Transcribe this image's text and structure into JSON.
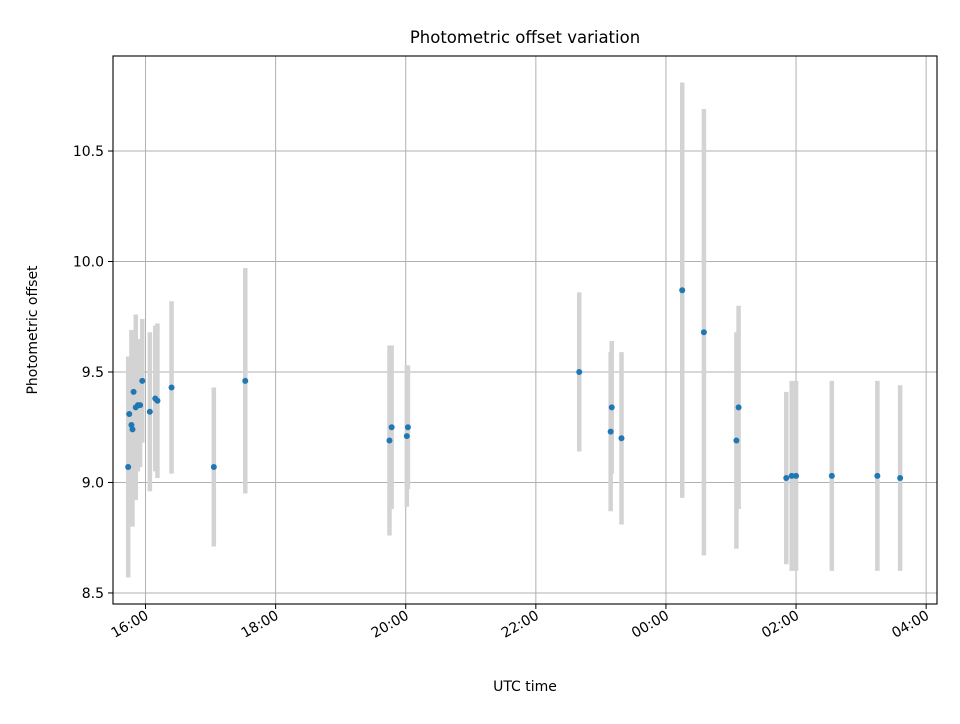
{
  "chart_data": {
    "type": "scatter",
    "title": "Photometric offset variation",
    "xlabel": "UTC time",
    "ylabel": "Photometric offset",
    "x_axis_kind": "time",
    "x_range": [
      "15:30",
      "04:10"
    ],
    "ylim": [
      8.45,
      10.93
    ],
    "x_ticks": [
      "16:00",
      "18:00",
      "20:00",
      "22:00",
      "00:00",
      "02:00",
      "04:00"
    ],
    "y_ticks": [
      "8.5",
      "9.0",
      "9.5",
      "10.0",
      "10.5"
    ],
    "grid": true,
    "colors": {
      "point": "#1f77b4",
      "errorbar": "#d3d3d3",
      "grid": "#b0b0b0"
    },
    "series": [
      {
        "points": [
          {
            "time": "15:44",
            "y": 9.07,
            "err": 0.5
          },
          {
            "time": "15:45",
            "y": 9.31,
            "err": 0.26
          },
          {
            "time": "15:47",
            "y": 9.26,
            "err": 0.43
          },
          {
            "time": "15:48",
            "y": 9.24,
            "err": 0.44
          },
          {
            "time": "15:49",
            "y": 9.41,
            "err": 0.28
          },
          {
            "time": "15:51",
            "y": 9.34,
            "err": 0.42
          },
          {
            "time": "15:53",
            "y": 9.35,
            "err": 0.3
          },
          {
            "time": "15:55",
            "y": 9.35,
            "err": 0.28
          },
          {
            "time": "15:57",
            "y": 9.46,
            "err": 0.28
          },
          {
            "time": "16:04",
            "y": 9.32,
            "err": 0.36
          },
          {
            "time": "16:09",
            "y": 9.38,
            "err": 0.33
          },
          {
            "time": "16:11",
            "y": 9.37,
            "err": 0.35
          },
          {
            "time": "16:24",
            "y": 9.43,
            "err": 0.39
          },
          {
            "time": "17:03",
            "y": 9.07,
            "err": 0.36
          },
          {
            "time": "17:32",
            "y": 9.46,
            "err": 0.51
          },
          {
            "time": "19:45",
            "y": 9.19,
            "err": 0.43
          },
          {
            "time": "19:47",
            "y": 9.25,
            "err": 0.37
          },
          {
            "time": "20:01",
            "y": 9.21,
            "err": 0.32
          },
          {
            "time": "20:02",
            "y": 9.25,
            "err": 0.28
          },
          {
            "time": "22:40",
            "y": 9.5,
            "err": 0.36
          },
          {
            "time": "23:09",
            "y": 9.23,
            "err": 0.36
          },
          {
            "time": "23:10",
            "y": 9.34,
            "err": 0.3
          },
          {
            "time": "23:19",
            "y": 9.2,
            "err": 0.39
          },
          {
            "time": "00:15",
            "y": 9.87,
            "err": 0.94
          },
          {
            "time": "00:35",
            "y": 9.68,
            "err": 1.01
          },
          {
            "time": "01:05",
            "y": 9.19,
            "err": 0.49
          },
          {
            "time": "01:07",
            "y": 9.34,
            "err": 0.46
          },
          {
            "time": "01:51",
            "y": 9.02,
            "err": 0.39
          },
          {
            "time": "01:56",
            "y": 9.03,
            "err": 0.43
          },
          {
            "time": "02:00",
            "y": 9.03,
            "err": 0.43
          },
          {
            "time": "02:33",
            "y": 9.03,
            "err": 0.43
          },
          {
            "time": "03:15",
            "y": 9.03,
            "err": 0.43
          },
          {
            "time": "03:36",
            "y": 9.02,
            "err": 0.42
          }
        ]
      }
    ]
  }
}
